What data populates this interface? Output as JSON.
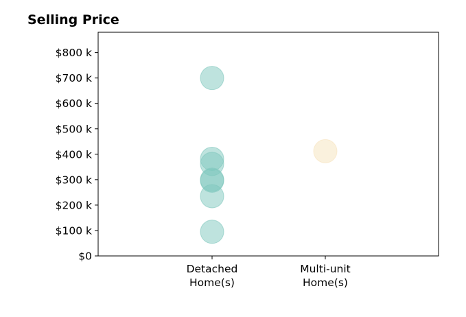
{
  "chart_data": {
    "type": "scatter",
    "title": "Selling Price",
    "xlabel": "",
    "ylabel": "",
    "categories": [
      [
        "Detached",
        "Home(s)"
      ],
      [
        "Multi-unit",
        "Home(s)"
      ]
    ],
    "ylim": [
      0,
      880000
    ],
    "yticks": [
      {
        "value": 0,
        "label": "$0"
      },
      {
        "value": 100000,
        "label": "$100 k"
      },
      {
        "value": 200000,
        "label": "$200 k"
      },
      {
        "value": 300000,
        "label": "$300 k"
      },
      {
        "value": 400000,
        "label": "$400 k"
      },
      {
        "value": 500000,
        "label": "$500 k"
      },
      {
        "value": 600000,
        "label": "$600 k"
      },
      {
        "value": 700000,
        "label": "$700 k"
      },
      {
        "value": 800000,
        "label": "$800 k"
      }
    ],
    "grid": false,
    "series": [
      {
        "category": 0,
        "color": "#7ec7bd",
        "values": [
          700000,
          382000,
          362000,
          300000,
          296000,
          235000,
          95000
        ]
      },
      {
        "category": 1,
        "color": "#f6e3bc",
        "values": [
          412000
        ]
      }
    ]
  }
}
